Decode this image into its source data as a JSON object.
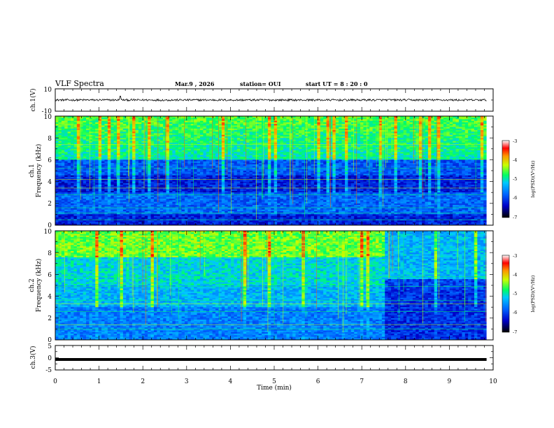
{
  "header": {
    "title": "VLF Spectra",
    "date": "Mar.9  , 2026",
    "station": "station= OUI",
    "start_ut": "start  UT  =   8  : 20 : 0"
  },
  "chart_data": [
    {
      "type": "line",
      "name": "ch1-waveform",
      "ylabel": "ch.1(V)",
      "ylim": [
        -10,
        10
      ],
      "y_tick_labels": [
        "10",
        "-10"
      ],
      "x": [
        0,
        10
      ],
      "description_of_series": "noisy waveform centred near 0 V, amplitude about 1 V, small spike near 1.5 min",
      "baseline_v": 0,
      "noise_amplitude_v": 1,
      "spikes": [
        {
          "t_min": 1.48,
          "value_v": 3.5
        }
      ]
    },
    {
      "type": "heatmap",
      "name": "ch1-spectrogram",
      "ylabel": "ch.1\nFrequency (kHz)",
      "ylabel_line1": "ch.1",
      "ylabel_line2": "Frequency  (kHz)",
      "ylim": [
        0,
        10
      ],
      "y_ticks": [
        0,
        2,
        4,
        6,
        8,
        10
      ],
      "xlim": [
        0,
        9.85
      ],
      "colorbar": {
        "label": "log(PSD)(V²/Hz)",
        "range": [
          -7,
          -3
        ],
        "ticks": [
          "-3",
          "-4",
          "-5",
          "-6",
          "-7"
        ]
      },
      "transition_time_min": 7.5
    },
    {
      "type": "heatmap",
      "name": "ch2-spectrogram",
      "ylabel": "ch.2\nFrequency (kHz)",
      "ylabel_line1": "ch.2",
      "ylabel_line2": "Frequency  (kHz)",
      "ylim": [
        0,
        10
      ],
      "y_ticks": [
        0,
        2,
        4,
        6,
        8,
        10
      ],
      "xlim": [
        0,
        9.85
      ],
      "colorbar": {
        "label": "log(PSD)(V²/Hz)",
        "range": [
          -7,
          -3
        ],
        "ticks": [
          "-3",
          "-4",
          "-5",
          "-6",
          "-7"
        ]
      },
      "transition_time_min": 7.5
    },
    {
      "type": "line",
      "name": "ch3-waveform",
      "ylabel": "ch.3(V)",
      "ylim": [
        -5,
        5
      ],
      "y_tick_labels": [
        "5",
        "0",
        "-5"
      ],
      "constant_value_v": -0.7,
      "xlim": [
        0,
        9.85
      ]
    }
  ],
  "x_axis": {
    "label": "Time  (min)",
    "range": [
      0,
      10
    ],
    "tick_labels": [
      "0",
      "1",
      "2",
      "3",
      "4",
      "5",
      "6",
      "7",
      "8",
      "9",
      "10"
    ]
  },
  "colors": {
    "colormap": [
      "#000000",
      "#0000c8",
      "#0064ff",
      "#00c8ff",
      "#00ff64",
      "#c8ff00",
      "#ff9600",
      "#ff0000",
      "#ffffff"
    ]
  }
}
